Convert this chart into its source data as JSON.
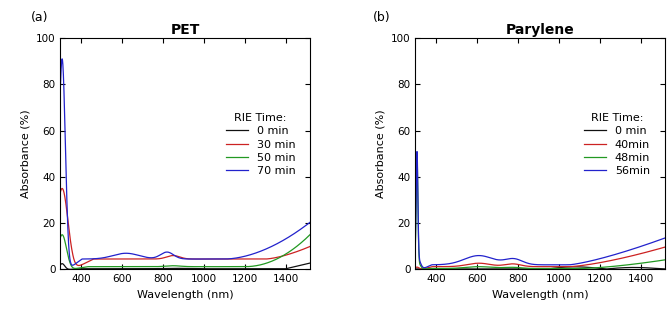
{
  "title_a": "PET",
  "title_b": "Parylene",
  "xlabel": "Wavelength (nm)",
  "ylabel": "Absorbance (%)",
  "label_a": "(a)",
  "label_b": "(b)",
  "xlim": [
    300,
    1520
  ],
  "ylim": [
    0,
    100
  ],
  "yticks": [
    0,
    20,
    40,
    60,
    80,
    100
  ],
  "xticks": [
    400,
    600,
    800,
    1000,
    1200,
    1400
  ],
  "legend_title": "RIE Time:",
  "pet_labels": [
    "0 min",
    "30 min",
    "50 min",
    "70 min"
  ],
  "pet_colors": [
    "#111111",
    "#cc2222",
    "#229922",
    "#2222cc"
  ],
  "parylene_labels": [
    "0 min",
    "40min",
    "48min",
    "56min"
  ],
  "parylene_colors": [
    "#111111",
    "#cc2222",
    "#229922",
    "#2222cc"
  ],
  "background_color": "#ffffff",
  "title_fontsize": 10,
  "label_fontsize": 8,
  "tick_fontsize": 7.5,
  "legend_fontsize": 8
}
